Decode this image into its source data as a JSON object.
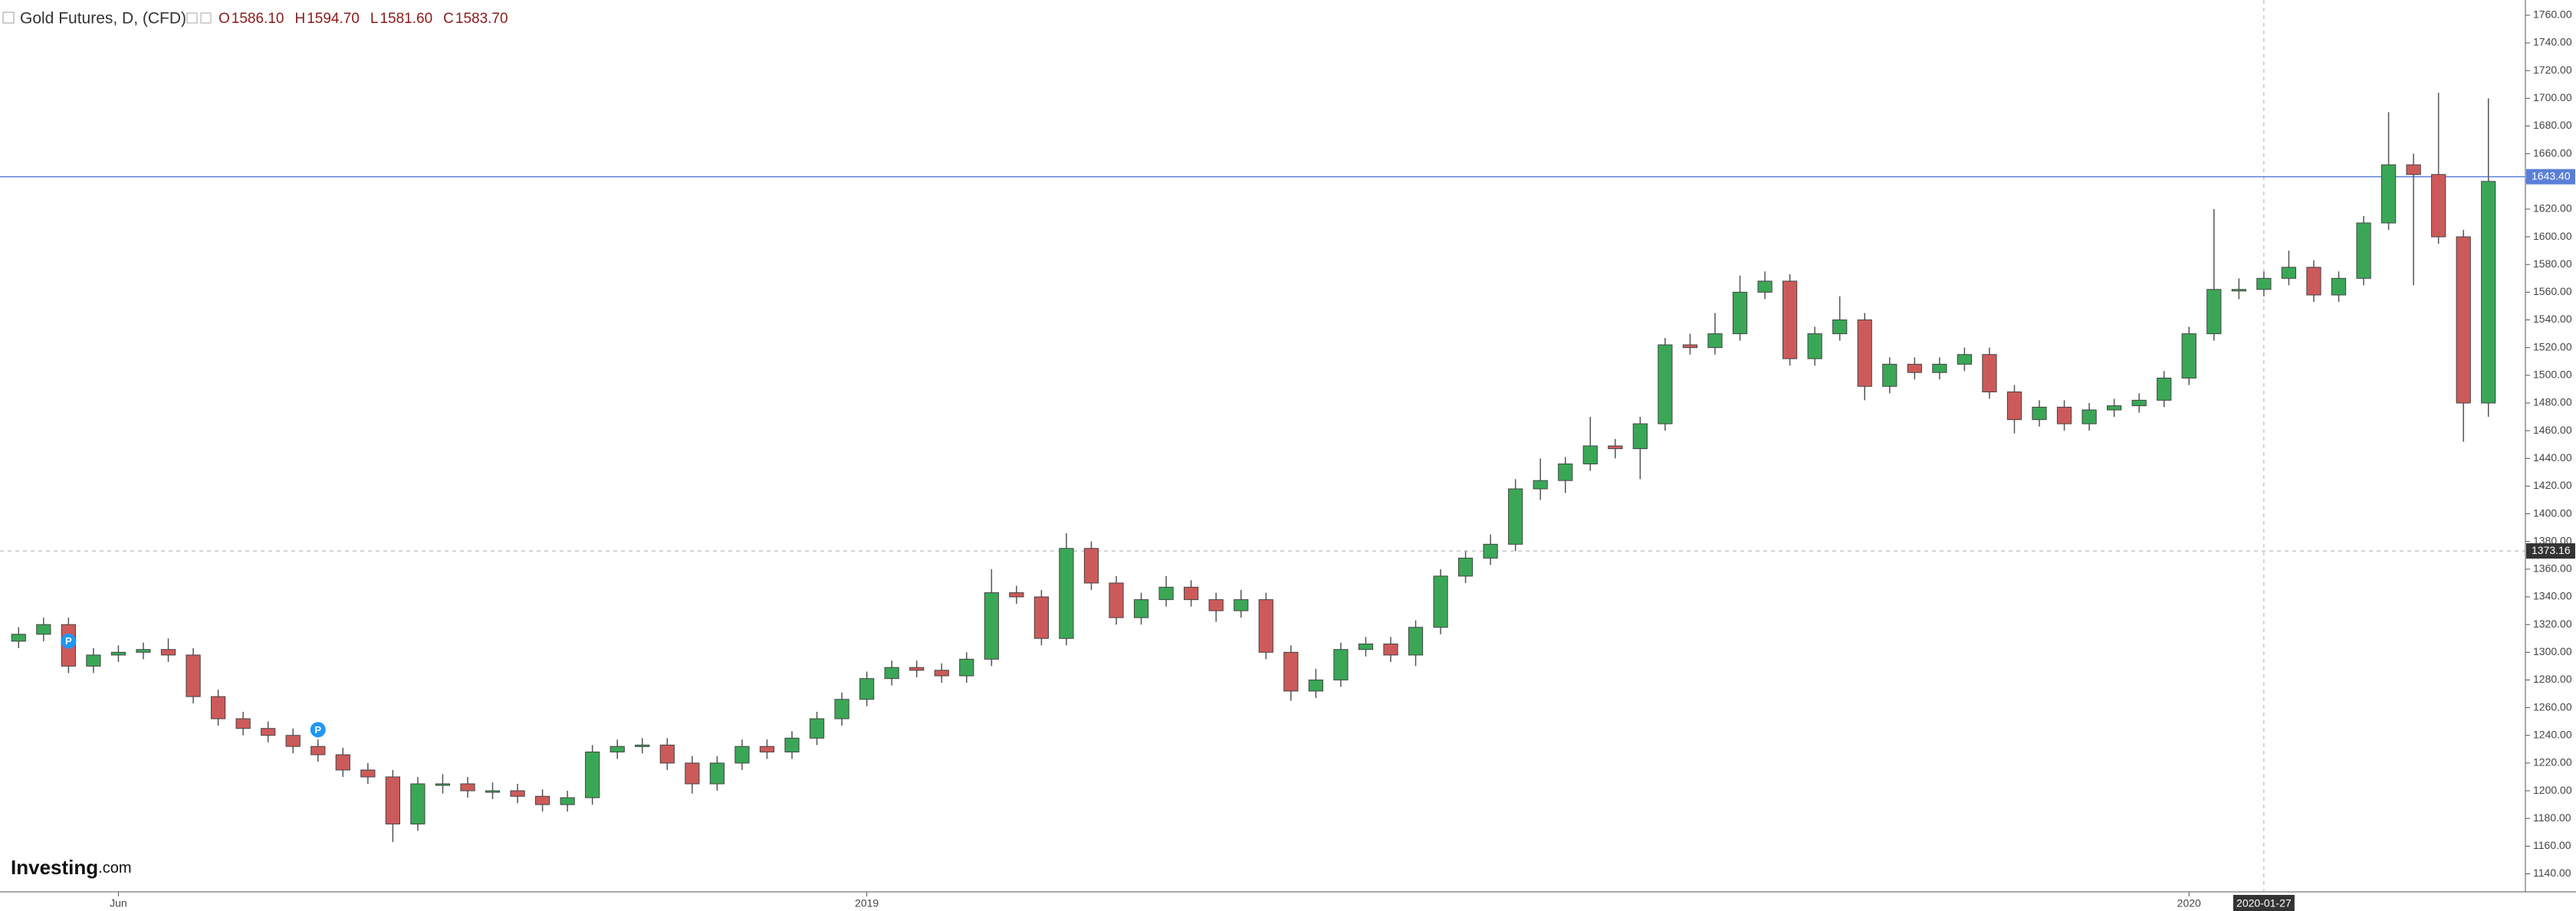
{
  "chart_data": {
    "type": "candlestick",
    "title": "Gold Futures, D, (CFD)",
    "ohlc_header": [
      {
        "key": "O",
        "value": "1586.10"
      },
      {
        "key": "H",
        "value": "1594.70"
      },
      {
        "key": "L",
        "value": "1581.60"
      },
      {
        "key": "C",
        "value": "1583.70"
      }
    ],
    "watermark": [
      "Investing",
      ".com"
    ],
    "up_color": "#3aa757",
    "down_color": "#cd5a5a",
    "grid": false,
    "ylim": [
      1127,
      1771
    ],
    "yticks": [
      {
        "value": 1140,
        "label": "1140.00"
      },
      {
        "value": 1160,
        "label": "1160.00"
      },
      {
        "value": 1180,
        "label": "1180.00"
      },
      {
        "value": 1200,
        "label": "1200.00"
      },
      {
        "value": 1220,
        "label": "1220.00"
      },
      {
        "value": 1240,
        "label": "1240.00"
      },
      {
        "value": 1260,
        "label": "1260.00"
      },
      {
        "value": 1280,
        "label": "1280.00"
      },
      {
        "value": 1300,
        "label": "1300.00"
      },
      {
        "value": 1320,
        "label": "1320.00"
      },
      {
        "value": 1340,
        "label": "1340.00"
      },
      {
        "value": 1360,
        "label": "1360.00"
      },
      {
        "value": 1380,
        "label": "1380.00"
      },
      {
        "value": 1400,
        "label": "1400.00"
      },
      {
        "value": 1420,
        "label": "1420.00"
      },
      {
        "value": 1440,
        "label": "1440.00"
      },
      {
        "value": 1460,
        "label": "1460.00"
      },
      {
        "value": 1480,
        "label": "1480.00"
      },
      {
        "value": 1500,
        "label": "1500.00"
      },
      {
        "value": 1520,
        "label": "1520.00"
      },
      {
        "value": 1540,
        "label": "1540.00"
      },
      {
        "value": 1560,
        "label": "1560.00"
      },
      {
        "value": 1580,
        "label": "1580.00"
      },
      {
        "value": 1600,
        "label": "1600.00"
      },
      {
        "value": 1620,
        "label": "1620.00"
      },
      {
        "value": 1640,
        "label": "1640.00"
      },
      {
        "value": 1660,
        "label": "1660.00"
      },
      {
        "value": 1680,
        "label": "1680.00"
      },
      {
        "value": 1700,
        "label": "1700.00"
      },
      {
        "value": 1720,
        "label": "1720.00"
      },
      {
        "value": 1740,
        "label": "1740.00"
      },
      {
        "value": 1760,
        "label": "1760.00"
      }
    ],
    "categories": [
      null,
      null,
      null,
      null,
      "Jun",
      null,
      null,
      null,
      null,
      null,
      null,
      null,
      null,
      null,
      null,
      null,
      null,
      null,
      null,
      null,
      null,
      null,
      null,
      null,
      null,
      null,
      null,
      null,
      null,
      null,
      null,
      null,
      null,
      null,
      "2019",
      null,
      null,
      null,
      null,
      null,
      null,
      null,
      null,
      null,
      null,
      null,
      null,
      null,
      null,
      null,
      null,
      null,
      null,
      null,
      null,
      null,
      null,
      null,
      null,
      null,
      null,
      null,
      null,
      null,
      null,
      null,
      null,
      null,
      null,
      null,
      null,
      null,
      null,
      null,
      null,
      null,
      null,
      null,
      null,
      null,
      null,
      null,
      null,
      null,
      null,
      null,
      null,
      "2020",
      null,
      null,
      null,
      null,
      null,
      null,
      null,
      null,
      null,
      null,
      null,
      null
    ],
    "open": [
      1308,
      1313,
      1320,
      1290,
      1298,
      1300,
      1302,
      1298,
      1268,
      1252,
      1245,
      1240,
      1232,
      1226,
      1215,
      1210,
      1176,
      1205,
      1205,
      1200,
      1200,
      1196,
      1190,
      1195,
      1228,
      1232,
      1233,
      1220,
      1205,
      1220,
      1232,
      1228,
      1238,
      1252,
      1266,
      1281,
      1289,
      1287,
      1283,
      1295,
      1343,
      1340,
      1310,
      1375,
      1350,
      1325,
      1338,
      1347,
      1338,
      1330,
      1338,
      1300,
      1272,
      1280,
      1302,
      1306,
      1298,
      1318,
      1355,
      1368,
      1378,
      1418,
      1424,
      1436,
      1449,
      1447,
      1465,
      1522,
      1520,
      1530,
      1560,
      1568,
      1512,
      1530,
      1540,
      1492,
      1508,
      1502,
      1508,
      1515,
      1488,
      1468,
      1477,
      1465,
      1475,
      1478,
      1482,
      1498,
      1530,
      1562,
      1562,
      1570,
      1578,
      1558,
      1570,
      1610,
      1652,
      1645,
      1600,
      1480
    ],
    "high": [
      1318,
      1325,
      1325,
      1303,
      1305,
      1307,
      1310,
      1303,
      1273,
      1257,
      1250,
      1245,
      1237,
      1231,
      1220,
      1215,
      1210,
      1212,
      1210,
      1206,
      1205,
      1201,
      1200,
      1233,
      1237,
      1238,
      1238,
      1225,
      1225,
      1237,
      1237,
      1243,
      1257,
      1271,
      1286,
      1294,
      1294,
      1292,
      1300,
      1360,
      1348,
      1345,
      1386,
      1380,
      1355,
      1343,
      1355,
      1352,
      1343,
      1345,
      1343,
      1305,
      1288,
      1307,
      1311,
      1311,
      1323,
      1360,
      1373,
      1385,
      1425,
      1440,
      1441,
      1470,
      1454,
      1470,
      1527,
      1530,
      1545,
      1572,
      1575,
      1573,
      1535,
      1557,
      1545,
      1513,
      1513,
      1513,
      1520,
      1520,
      1493,
      1482,
      1482,
      1480,
      1483,
      1487,
      1503,
      1535,
      1620,
      1570,
      1575,
      1590,
      1583,
      1575,
      1615,
      1690,
      1660,
      1704,
      1605,
      1700
    ],
    "low": [
      1303,
      1308,
      1285,
      1285,
      1293,
      1295,
      1293,
      1263,
      1247,
      1240,
      1235,
      1227,
      1221,
      1210,
      1205,
      1163,
      1171,
      1198,
      1195,
      1194,
      1191,
      1185,
      1185,
      1190,
      1223,
      1227,
      1215,
      1198,
      1200,
      1215,
      1223,
      1223,
      1233,
      1247,
      1261,
      1276,
      1282,
      1278,
      1278,
      1290,
      1335,
      1305,
      1305,
      1345,
      1320,
      1320,
      1333,
      1333,
      1322,
      1325,
      1295,
      1265,
      1267,
      1275,
      1297,
      1293,
      1290,
      1313,
      1350,
      1363,
      1373,
      1410,
      1415,
      1431,
      1440,
      1425,
      1460,
      1515,
      1515,
      1525,
      1555,
      1507,
      1507,
      1525,
      1482,
      1487,
      1497,
      1497,
      1503,
      1483,
      1458,
      1463,
      1460,
      1460,
      1470,
      1473,
      1477,
      1493,
      1525,
      1555,
      1557,
      1565,
      1553,
      1553,
      1565,
      1605,
      1565,
      1595,
      1452,
      1470
    ],
    "close": [
      1313,
      1320,
      1290,
      1298,
      1300,
      1302,
      1298,
      1268,
      1252,
      1245,
      1240,
      1232,
      1226,
      1215,
      1210,
      1176,
      1205,
      1205,
      1200,
      1200,
      1196,
      1190,
      1195,
      1228,
      1232,
      1233,
      1220,
      1205,
      1220,
      1232,
      1228,
      1238,
      1252,
      1266,
      1281,
      1289,
      1287,
      1283,
      1295,
      1343,
      1340,
      1310,
      1375,
      1350,
      1325,
      1338,
      1347,
      1338,
      1330,
      1338,
      1300,
      1272,
      1280,
      1302,
      1306,
      1298,
      1318,
      1355,
      1368,
      1378,
      1418,
      1424,
      1436,
      1449,
      1447,
      1465,
      1522,
      1520,
      1530,
      1560,
      1568,
      1512,
      1530,
      1540,
      1492,
      1508,
      1502,
      1508,
      1515,
      1488,
      1468,
      1477,
      1465,
      1475,
      1478,
      1482,
      1498,
      1530,
      1562,
      1562,
      1570,
      1578,
      1558,
      1570,
      1610,
      1652,
      1645,
      1600,
      1480,
      1640
    ],
    "price_line": {
      "value": 1643.4,
      "label": "1643.40",
      "color": "#5b7fd6"
    },
    "crosshair": {
      "index": 90,
      "x_label": "2020-01-27",
      "value": 1373.16,
      "y_label": "1373.16"
    },
    "annotations": [
      {
        "text": "P",
        "index": 2,
        "value": 1297
      },
      {
        "text": "P",
        "index": 12,
        "value": 1233
      }
    ]
  }
}
